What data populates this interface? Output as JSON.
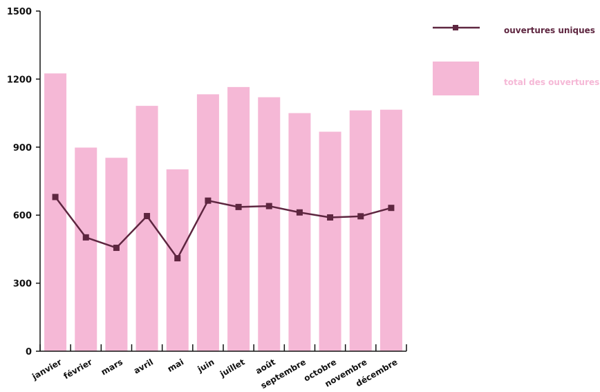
{
  "chart_data": {
    "type": "bar",
    "categories": [
      "janvier",
      "février",
      "mars",
      "avril",
      "mai",
      "juin",
      "juillet",
      "août",
      "septembre",
      "octobre",
      "novembre",
      "décembre"
    ],
    "series": [
      {
        "name": "total des ouvertures",
        "type": "bar",
        "color": "#f5b8d6",
        "values": [
          1225,
          898,
          853,
          1082,
          802,
          1133,
          1165,
          1120,
          1050,
          968,
          1062,
          1065
        ]
      },
      {
        "name": "ouvertures uniques",
        "type": "line",
        "color": "#5e2640",
        "values": [
          680,
          502,
          456,
          596,
          410,
          664,
          636,
          640,
          612,
          590,
          595,
          632
        ]
      }
    ],
    "yticks": [
      0,
      300,
      600,
      900,
      1200,
      1500
    ],
    "ylim": [
      0,
      1500
    ],
    "grid": false,
    "legend_position": "top-right"
  }
}
